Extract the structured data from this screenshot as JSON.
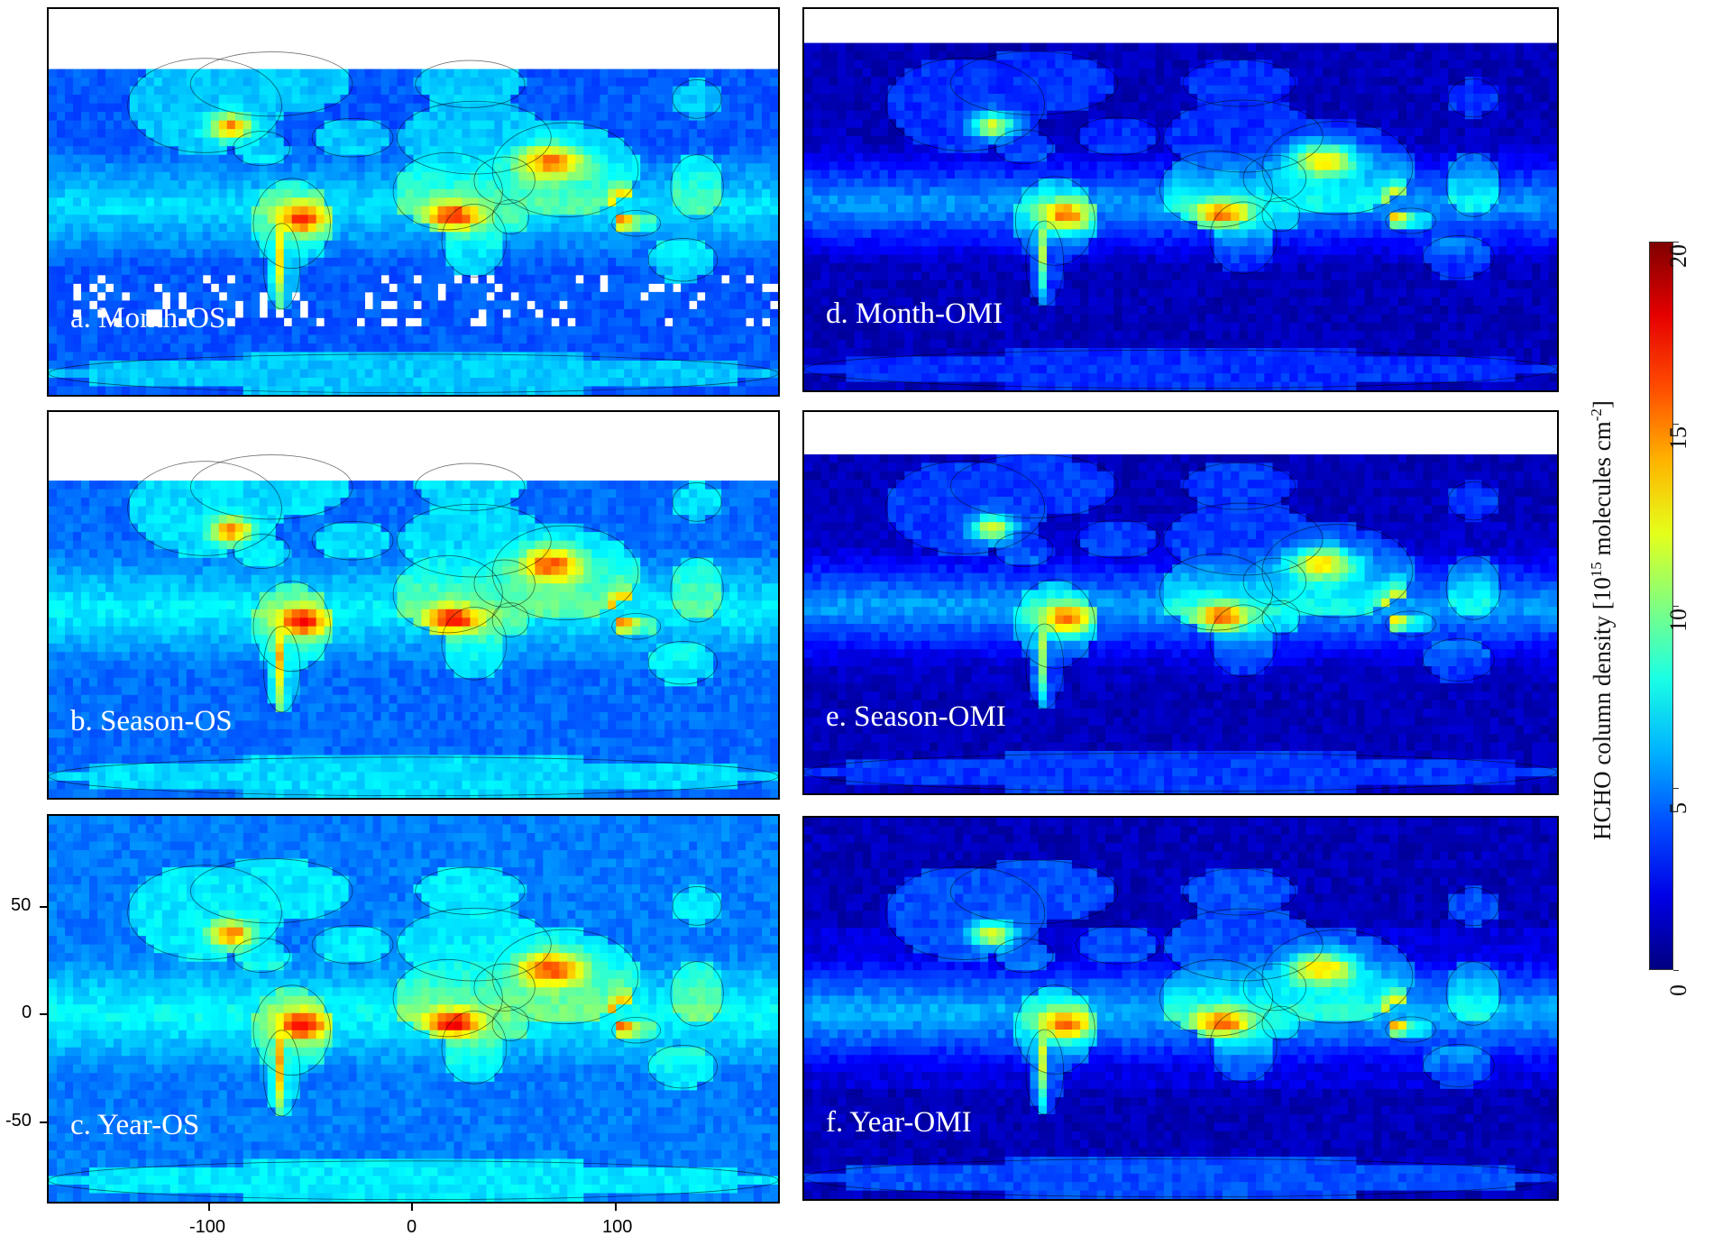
{
  "figure": {
    "panels": [
      {
        "id": "a",
        "label": "a. Month-OS",
        "snow_rows": 6.3,
        "base_level": 4.2,
        "cloud_gaps": true
      },
      {
        "id": "b",
        "label": "b. Season-OS",
        "snow_rows": 7.6,
        "base_level": 4.6,
        "cloud_gaps": false
      },
      {
        "id": "c",
        "label": "c. Year-OS",
        "snow_rows": 0,
        "base_level": 4.9,
        "cloud_gaps": false
      },
      {
        "id": "d",
        "label": "d. Month-OMI",
        "snow_rows": 4.0,
        "base_level": 1.2,
        "cloud_gaps": false
      },
      {
        "id": "e",
        "label": "e. Season-OMI",
        "snow_rows": 5.0,
        "base_level": 1.4,
        "cloud_gaps": false
      },
      {
        "id": "f",
        "label": "f. Year-OMI",
        "snow_rows": 0,
        "base_level": 1.8,
        "cloud_gaps": false
      }
    ],
    "y_axis": {
      "ticks": [
        "50",
        "0",
        "-50"
      ],
      "tick_values": [
        50,
        0,
        -50
      ],
      "range": [
        -90,
        90
      ]
    },
    "x_axis": {
      "ticks": [
        "-100",
        "0",
        "100"
      ],
      "tick_values": [
        -100,
        0,
        100
      ],
      "range": [
        -180,
        180
      ]
    },
    "colorbar": {
      "title_main": "HCHO column density [10",
      "title_sup": "15",
      "title_mid": " molecules cm",
      "title_sup2": "-2",
      "title_end": "]",
      "ticks": [
        "0",
        "5",
        "10",
        "15",
        "20"
      ],
      "tick_values": [
        0,
        5,
        10,
        15,
        20
      ],
      "range": [
        0,
        20
      ],
      "colormap": "jet"
    },
    "colors": {
      "ocean_low": "#1e2bff",
      "land_outline": "#000000",
      "no_data": "#ffffff"
    }
  }
}
